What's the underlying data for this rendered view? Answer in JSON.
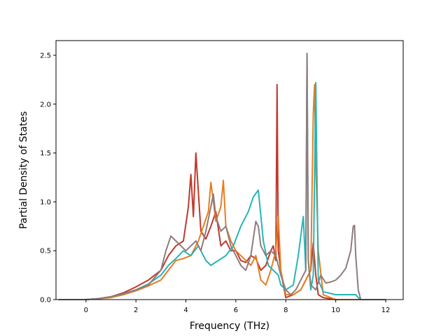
{
  "chart_data": {
    "type": "line",
    "title": "",
    "xlabel": "Frequency (THz)",
    "ylabel": "Partial Density of States",
    "xlim": [
      -1.2,
      12.7
    ],
    "ylim": [
      0,
      2.65
    ],
    "xticks": [
      0,
      2,
      4,
      6,
      8,
      10,
      12
    ],
    "yticks": [
      0.0,
      0.5,
      1.0,
      1.5,
      2.0,
      2.5
    ],
    "xtick_labels": [
      "0",
      "2",
      "4",
      "6",
      "8",
      "10",
      "12"
    ],
    "ytick_labels": [
      "0.0",
      "0.5",
      "1.0",
      "1.5",
      "2.0",
      "2.5"
    ],
    "grid": false,
    "legend": "none",
    "series": [
      {
        "color": "#c0392b",
        "x": [
          -1.1,
          0,
          0.5,
          1,
          1.5,
          2,
          2.5,
          3,
          3.3,
          3.6,
          3.9,
          4.1,
          4.2,
          4.3,
          4.4,
          4.6,
          4.8,
          5.0,
          5.2,
          5.4,
          5.6,
          5.8,
          6.0,
          6.2,
          6.4,
          6.6,
          6.8,
          7.0,
          7.2,
          7.4,
          7.5,
          7.6,
          7.65,
          7.7,
          7.8,
          7.9,
          8.0,
          8.3,
          8.6,
          8.8,
          9.0,
          9.1,
          9.2,
          9.3,
          9.5,
          10,
          11,
          12
        ],
        "y": [
          0,
          0,
          0.01,
          0.03,
          0.07,
          0.13,
          0.2,
          0.3,
          0.45,
          0.55,
          0.6,
          0.95,
          1.28,
          0.85,
          1.5,
          0.7,
          0.62,
          0.75,
          0.9,
          0.55,
          0.6,
          0.5,
          0.5,
          0.4,
          0.38,
          0.45,
          0.42,
          0.3,
          0.35,
          0.5,
          0.55,
          0.4,
          2.2,
          0.5,
          0.3,
          0.15,
          0.02,
          0.05,
          0.1,
          0.2,
          0.3,
          0.58,
          0.25,
          0.05,
          0.02,
          0,
          0,
          0
        ]
      },
      {
        "color": "#e67e22",
        "x": [
          -1.1,
          0,
          0.5,
          1,
          1.5,
          2,
          2.5,
          3,
          3.3,
          3.6,
          3.9,
          4.2,
          4.5,
          4.7,
          4.9,
          5.0,
          5.2,
          5.4,
          5.5,
          5.6,
          5.8,
          6.0,
          6.2,
          6.4,
          6.6,
          6.8,
          7.0,
          7.2,
          7.4,
          7.6,
          7.7,
          7.8,
          8.0,
          8.3,
          8.6,
          8.8,
          9.0,
          9.1,
          9.15,
          9.2,
          9.3,
          9.5,
          10,
          11,
          12
        ],
        "y": [
          0,
          0,
          0.01,
          0.02,
          0.05,
          0.09,
          0.14,
          0.2,
          0.3,
          0.4,
          0.42,
          0.45,
          0.6,
          0.75,
          0.9,
          1.2,
          0.8,
          0.95,
          1.22,
          0.75,
          0.6,
          0.5,
          0.45,
          0.4,
          0.35,
          0.45,
          0.2,
          0.15,
          0.3,
          0.5,
          0.85,
          0.3,
          0.05,
          0.05,
          0.1,
          0.2,
          0.3,
          1.9,
          2.2,
          1.4,
          0.5,
          0.05,
          0,
          0,
          0
        ]
      },
      {
        "color": "#26b5b8",
        "x": [
          -1.1,
          0,
          0.5,
          1,
          1.5,
          2,
          2.5,
          3,
          3.3,
          3.6,
          3.9,
          4.2,
          4.5,
          4.8,
          5.0,
          5.3,
          5.6,
          5.9,
          6.2,
          6.5,
          6.7,
          6.9,
          7.1,
          7.3,
          7.5,
          7.7,
          7.8,
          8.0,
          8.3,
          8.5,
          8.7,
          8.8,
          8.85,
          8.9,
          9.0,
          9.1,
          9.2,
          9.3,
          9.5,
          10,
          10.5,
          10.7,
          10.8,
          10.9,
          11,
          12
        ],
        "y": [
          0,
          0,
          0.01,
          0.03,
          0.06,
          0.1,
          0.16,
          0.25,
          0.35,
          0.42,
          0.5,
          0.45,
          0.55,
          0.4,
          0.35,
          0.4,
          0.45,
          0.55,
          0.75,
          0.9,
          1.05,
          1.12,
          0.6,
          0.35,
          0.3,
          0.25,
          0.15,
          0.1,
          0.15,
          0.45,
          0.85,
          0.3,
          2.5,
          0.4,
          0.1,
          0.25,
          2.22,
          0.2,
          0.08,
          0.05,
          0.05,
          0.05,
          0.05,
          0.02,
          0,
          0
        ]
      },
      {
        "color": "#8e7c7e",
        "x": [
          -1.1,
          0,
          0.5,
          1,
          1.5,
          2,
          2.5,
          3,
          3.2,
          3.4,
          3.6,
          3.8,
          4.0,
          4.2,
          4.4,
          4.6,
          4.8,
          5.0,
          5.1,
          5.2,
          5.4,
          5.6,
          5.8,
          6.0,
          6.2,
          6.4,
          6.6,
          6.8,
          6.9,
          7.0,
          7.2,
          7.4,
          7.6,
          7.8,
          8.0,
          8.2,
          8.4,
          8.6,
          8.8,
          8.85,
          8.9,
          9.0,
          9.2,
          9.4,
          9.6,
          9.8,
          10.0,
          10.2,
          10.4,
          10.6,
          10.7,
          10.75,
          10.8,
          10.9,
          11.0,
          12
        ],
        "y": [
          0,
          0,
          0.01,
          0.03,
          0.06,
          0.1,
          0.15,
          0.3,
          0.5,
          0.65,
          0.6,
          0.55,
          0.5,
          0.55,
          0.6,
          0.5,
          0.7,
          0.95,
          1.08,
          0.85,
          0.7,
          0.75,
          0.55,
          0.45,
          0.35,
          0.3,
          0.45,
          0.8,
          0.75,
          0.55,
          0.45,
          0.5,
          0.45,
          0.25,
          0.1,
          0.05,
          0.1,
          0.2,
          0.3,
          2.52,
          0.4,
          0.15,
          0.1,
          0.25,
          0.17,
          0.18,
          0.2,
          0.25,
          0.32,
          0.5,
          0.75,
          0.76,
          0.45,
          0.1,
          0,
          0
        ]
      }
    ]
  }
}
